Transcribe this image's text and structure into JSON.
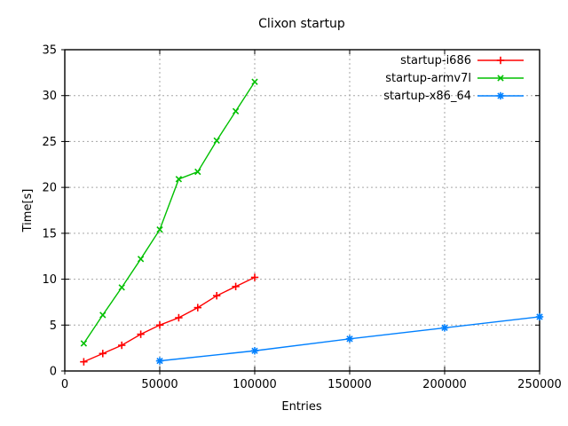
{
  "window": {
    "background": "#ffffff"
  },
  "chart_data": {
    "type": "line",
    "title": "Clixon startup",
    "xlabel": "Entries",
    "ylabel": "Time[s]",
    "xlim": [
      0,
      250000
    ],
    "ylim": [
      0,
      35
    ],
    "xtick_values": [
      0,
      50000,
      100000,
      150000,
      200000,
      250000
    ],
    "xtick_labels": [
      "0",
      "50000",
      "100000",
      "150000",
      "200000",
      "250000"
    ],
    "ytick_values": [
      0,
      5,
      10,
      15,
      20,
      25,
      30,
      35
    ],
    "ytick_labels": [
      "0",
      "5",
      "10",
      "15",
      "20",
      "25",
      "30",
      "35"
    ],
    "grid": true,
    "legend_position": "top-right-inside",
    "axis_color": "#000000",
    "grid_color": "#a6a6a6",
    "background_color": "#ffffff",
    "series": [
      {
        "name": "startup-i686",
        "color": "#ff0000",
        "marker": "plus",
        "x": [
          10000,
          20000,
          30000,
          40000,
          50000,
          60000,
          70000,
          80000,
          90000,
          100000
        ],
        "y": [
          1.0,
          1.9,
          2.8,
          4.0,
          5.0,
          5.8,
          6.9,
          8.2,
          9.2,
          10.2
        ]
      },
      {
        "name": "startup-armv7l",
        "color": "#00c000",
        "marker": "cross",
        "x": [
          10000,
          20000,
          30000,
          40000,
          50000,
          60000,
          70000,
          80000,
          90000,
          100000
        ],
        "y": [
          3.0,
          6.1,
          9.1,
          12.2,
          15.4,
          20.9,
          21.7,
          25.1,
          28.3,
          31.5
        ]
      },
      {
        "name": "startup-x86_64",
        "color": "#0080ff",
        "marker": "asterisk",
        "x": [
          50000,
          100000,
          150000,
          200000,
          250000
        ],
        "y": [
          1.1,
          2.2,
          3.5,
          4.7,
          5.9
        ]
      }
    ]
  }
}
